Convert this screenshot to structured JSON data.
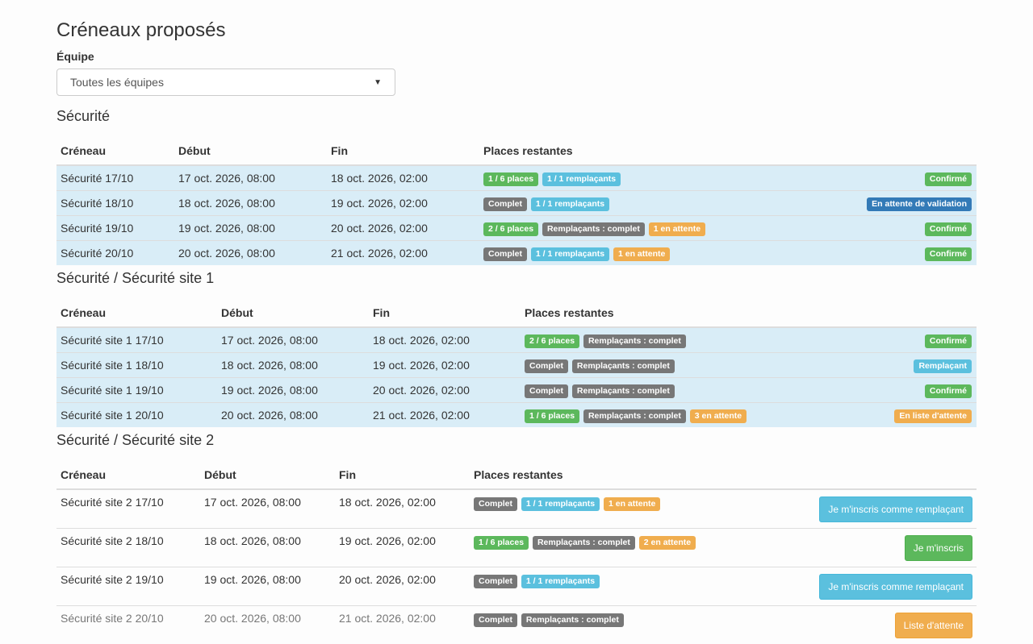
{
  "page_title": "Créneaux proposés",
  "team_filter": {
    "label": "Équipe",
    "value": "Toutes les équipes"
  },
  "columns": {
    "slot": "Créneau",
    "start": "Début",
    "end": "Fin",
    "places": "Places restantes"
  },
  "sections": [
    {
      "title": "Sécurité",
      "rows": [
        {
          "name": "Sécurité 17/10",
          "start": "17 oct. 2026, 08:00",
          "end": "18 oct. 2026, 02:00",
          "badges": [
            {
              "text": "1 / 6 places",
              "style": "success"
            },
            {
              "text": "1 / 1 remplaçants",
              "style": "info"
            }
          ],
          "status": {
            "text": "Confirmé",
            "style": "success"
          }
        },
        {
          "name": "Sécurité 18/10",
          "start": "18 oct. 2026, 08:00",
          "end": "19 oct. 2026, 02:00",
          "badges": [
            {
              "text": "Complet",
              "style": "default"
            },
            {
              "text": "1 / 1 remplaçants",
              "style": "info"
            }
          ],
          "status": {
            "text": "En attente de validation",
            "style": "primary"
          }
        },
        {
          "name": "Sécurité 19/10",
          "start": "19 oct. 2026, 08:00",
          "end": "20 oct. 2026, 02:00",
          "badges": [
            {
              "text": "2 / 6 places",
              "style": "success"
            },
            {
              "text": "Remplaçants : complet",
              "style": "default"
            },
            {
              "text": "1 en attente",
              "style": "warning"
            }
          ],
          "status": {
            "text": "Confirmé",
            "style": "success"
          }
        },
        {
          "name": "Sécurité 20/10",
          "start": "20 oct. 2026, 08:00",
          "end": "21 oct. 2026, 02:00",
          "badges": [
            {
              "text": "Complet",
              "style": "default"
            },
            {
              "text": "1 / 1 remplaçants",
              "style": "info"
            },
            {
              "text": "1 en attente",
              "style": "warning"
            }
          ],
          "status": {
            "text": "Confirmé",
            "style": "success"
          }
        }
      ]
    },
    {
      "title": "Sécurité / Sécurité site 1",
      "rows": [
        {
          "name": "Sécurité site 1 17/10",
          "start": "17 oct. 2026, 08:00",
          "end": "18 oct. 2026, 02:00",
          "badges": [
            {
              "text": "2 / 6 places",
              "style": "success"
            },
            {
              "text": "Remplaçants : complet",
              "style": "default"
            }
          ],
          "status": {
            "text": "Confirmé",
            "style": "success"
          }
        },
        {
          "name": "Sécurité site 1 18/10",
          "start": "18 oct. 2026, 08:00",
          "end": "19 oct. 2026, 02:00",
          "badges": [
            {
              "text": "Complet",
              "style": "default"
            },
            {
              "text": "Remplaçants : complet",
              "style": "default"
            }
          ],
          "status": {
            "text": "Remplaçant",
            "style": "info"
          }
        },
        {
          "name": "Sécurité site 1 19/10",
          "start": "19 oct. 2026, 08:00",
          "end": "20 oct. 2026, 02:00",
          "badges": [
            {
              "text": "Complet",
              "style": "default"
            },
            {
              "text": "Remplaçants : complet",
              "style": "default"
            }
          ],
          "status": {
            "text": "Confirmé",
            "style": "success"
          }
        },
        {
          "name": "Sécurité site 1 20/10",
          "start": "20 oct. 2026, 08:00",
          "end": "21 oct. 2026, 02:00",
          "badges": [
            {
              "text": "1 / 6 places",
              "style": "success"
            },
            {
              "text": "Remplaçants : complet",
              "style": "default"
            },
            {
              "text": "3 en attente",
              "style": "warning"
            }
          ],
          "status": {
            "text": "En liste d'attente",
            "style": "warning"
          }
        }
      ]
    },
    {
      "title": "Sécurité / Sécurité site 2",
      "rows": [
        {
          "name": "Sécurité site 2 17/10",
          "start": "17 oct. 2026, 08:00",
          "end": "18 oct. 2026, 02:00",
          "badges": [
            {
              "text": "Complet",
              "style": "default"
            },
            {
              "text": "1 / 1 remplaçants",
              "style": "info"
            },
            {
              "text": "1 en attente",
              "style": "warning"
            }
          ],
          "action": {
            "text": "Je m'inscris comme remplaçant",
            "style": "info"
          }
        },
        {
          "name": "Sécurité site 2 18/10",
          "start": "18 oct. 2026, 08:00",
          "end": "19 oct. 2026, 02:00",
          "badges": [
            {
              "text": "1 / 6 places",
              "style": "success"
            },
            {
              "text": "Remplaçants : complet",
              "style": "default"
            },
            {
              "text": "2 en attente",
              "style": "warning"
            }
          ],
          "action": {
            "text": "Je m'inscris",
            "style": "success"
          }
        },
        {
          "name": "Sécurité site 2 19/10",
          "start": "19 oct. 2026, 08:00",
          "end": "20 oct. 2026, 02:00",
          "badges": [
            {
              "text": "Complet",
              "style": "default"
            },
            {
              "text": "1 / 1 remplaçants",
              "style": "info"
            }
          ],
          "action": {
            "text": "Je m'inscris comme remplaçant",
            "style": "info"
          }
        },
        {
          "name": "Sécurité site 2 20/10",
          "start": "20 oct. 2026, 08:00",
          "end": "21 oct. 2026, 02:00",
          "muted": true,
          "badges": [
            {
              "text": "Complet",
              "style": "default"
            },
            {
              "text": "Remplaçants : complet",
              "style": "default"
            }
          ],
          "action": {
            "text": "Liste d'attente",
            "style": "warning"
          }
        }
      ]
    }
  ]
}
